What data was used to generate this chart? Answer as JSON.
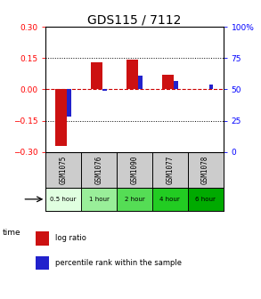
{
  "title": "GDS115 / 7112",
  "samples": [
    "GSM1075",
    "GSM1076",
    "GSM1090",
    "GSM1077",
    "GSM1078"
  ],
  "time_labels": [
    "0.5 hour",
    "1 hour",
    "2 hour",
    "4 hour",
    "6 hour"
  ],
  "time_colors": [
    "#e0ffe0",
    "#99ee99",
    "#55dd55",
    "#22cc22",
    "#00aa00"
  ],
  "log_ratios": [
    -0.27,
    0.13,
    0.145,
    0.07,
    0.0
  ],
  "percentile_ranks": [
    28,
    49,
    61,
    57,
    54
  ],
  "bar_color_red": "#cc1111",
  "bar_color_blue": "#2222cc",
  "ylim_left": [
    -0.3,
    0.3
  ],
  "ylim_right": [
    0,
    100
  ],
  "yticks_left": [
    -0.3,
    -0.15,
    0,
    0.15,
    0.3
  ],
  "yticks_right": [
    0,
    25,
    50,
    75,
    100
  ],
  "hline_dotted": [
    -0.15,
    0.15
  ],
  "background_color": "#ffffff",
  "sample_bg": "#cccccc",
  "dashed_zero_color": "#cc0000",
  "title_fontsize": 10,
  "tick_fontsize": 6.5,
  "label_fontsize": 6,
  "bar_width": 0.32,
  "blue_bar_width": 0.12
}
